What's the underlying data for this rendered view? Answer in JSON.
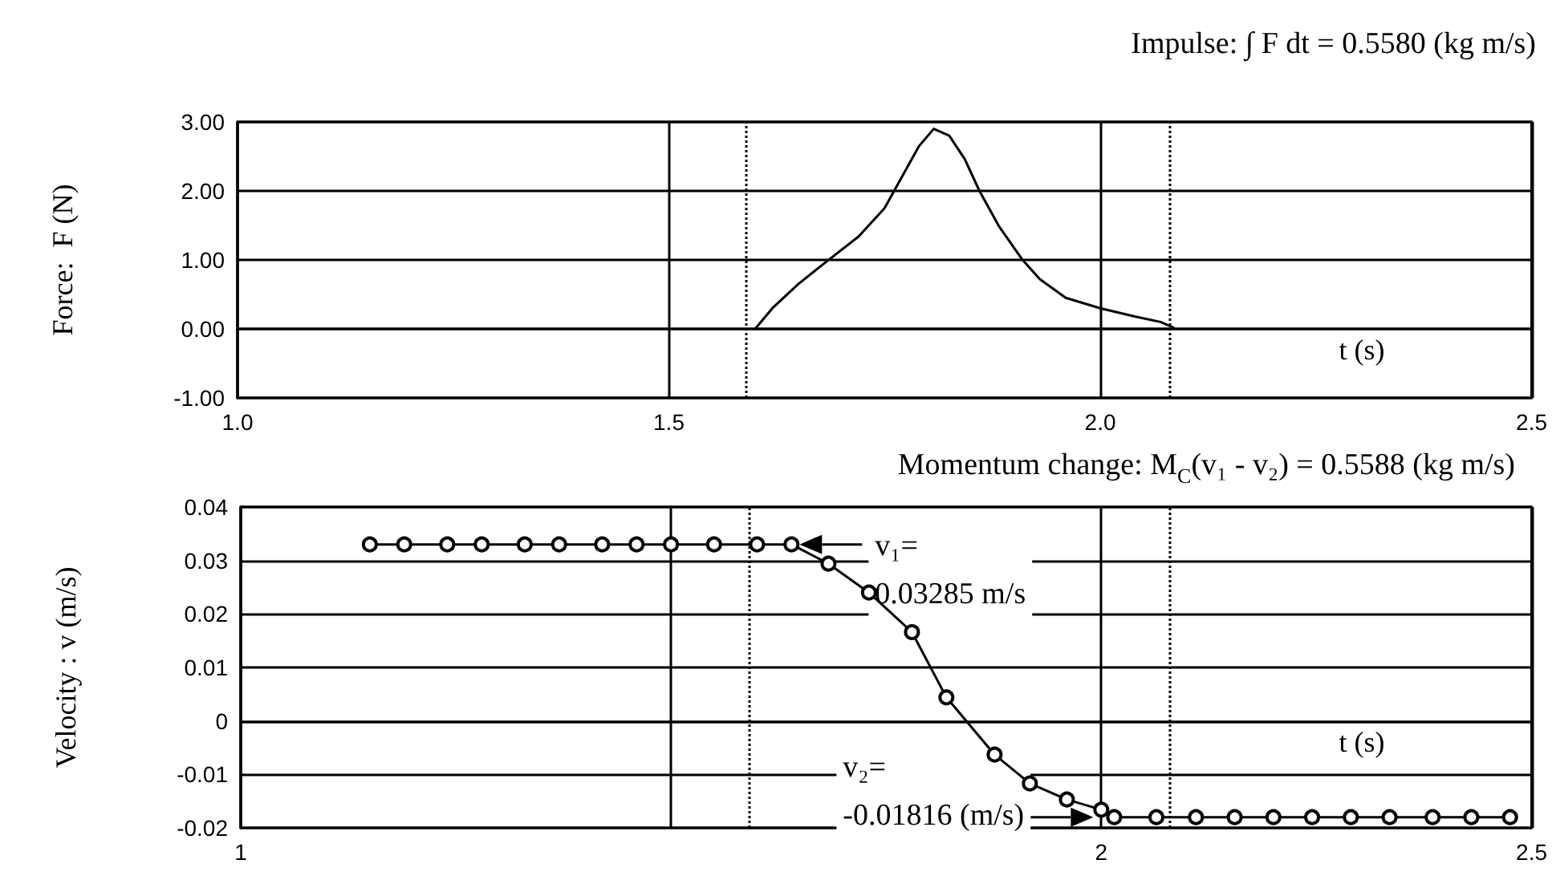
{
  "chart_data": [
    {
      "type": "line",
      "ylabel": "Force:  F (N)",
      "xlabel": "t (s)",
      "x": [
        1.6,
        1.62,
        1.65,
        1.68,
        1.72,
        1.75,
        1.77,
        1.79,
        1.807,
        1.825,
        1.843,
        1.86,
        1.883,
        1.91,
        1.93,
        1.96,
        2.0,
        2.04,
        2.07,
        2.085
      ],
      "series": [
        {
          "color": "#000000",
          "values": [
            0,
            0.3,
            0.65,
            0.95,
            1.34,
            1.75,
            2.2,
            2.65,
            2.9,
            2.8,
            2.46,
            2.0,
            1.48,
            1.0,
            0.72,
            0.45,
            0.3,
            0.18,
            0.1,
            0.02
          ]
        }
      ],
      "xlim": [
        1.0,
        2.5
      ],
      "xticks": [
        {
          "value": 1.0,
          "label": "1.0"
        },
        {
          "value": 1.5,
          "label": "1.5"
        },
        {
          "value": 2.0,
          "label": "2.0"
        },
        {
          "value": 2.5,
          "label": "2.5"
        }
      ],
      "ylim": [
        -1,
        3
      ],
      "yticks": [
        {
          "value": -1,
          "label": "-1.00"
        },
        {
          "value": 0,
          "label": "0.00"
        },
        {
          "value": 1,
          "label": "1.00"
        },
        {
          "value": 2,
          "label": "2.00"
        },
        {
          "value": 3,
          "label": "3.00"
        }
      ],
      "grid": true,
      "marker": "none",
      "line_style": "solid",
      "ref_lines": [
        {
          "axis": "x",
          "value": 1.59,
          "color": "#000000",
          "line_style": "dotted"
        },
        {
          "axis": "x",
          "value": 2.08,
          "color": "#000000",
          "line_style": "dotted"
        }
      ],
      "annotations": [
        "Impulse: ∫ F dt = 0.5580 (kg m/s)"
      ]
    },
    {
      "type": "line",
      "title": "Momentum change: M$_{C}$(v₁ - v₂) = 0.5588 (kg m/s)",
      "ylabel": "Velocity : v (m/s)",
      "xlabel": "t (s)",
      "x": [
        1.15,
        1.19,
        1.24,
        1.28,
        1.33,
        1.37,
        1.42,
        1.46,
        1.5,
        1.55,
        1.6,
        1.64,
        1.683,
        1.73,
        1.78,
        1.82,
        1.876,
        1.917,
        1.96,
        2.0,
        2.015,
        2.064,
        2.11,
        2.155,
        2.2,
        2.245,
        2.29,
        2.335,
        2.385,
        2.43,
        2.475
      ],
      "series": [
        {
          "color": "#000000",
          "values": [
            0.033,
            0.033,
            0.033,
            0.033,
            0.033,
            0.033,
            0.033,
            0.033,
            0.033,
            0.033,
            0.033,
            0.033,
            0.0294,
            0.024,
            0.0166,
            0.0044,
            -0.0063,
            -0.0117,
            -0.0147,
            -0.0166,
            -0.018,
            -0.018,
            -0.018,
            -0.018,
            -0.018,
            -0.018,
            -0.018,
            -0.018,
            -0.018,
            -0.018,
            -0.018
          ]
        }
      ],
      "xlim": [
        1.0,
        2.5
      ],
      "xticks": [
        {
          "value": 1.0,
          "label": "1"
        },
        {
          "value": 1.5,
          "label": null
        },
        {
          "value": 2.0,
          "label": "2"
        },
        {
          "value": 2.5,
          "label": "2.5"
        }
      ],
      "ylim": [
        -0.02,
        0.04
      ],
      "yticks": [
        {
          "value": -0.02,
          "label": "-0.02"
        },
        {
          "value": -0.01,
          "label": "-0.01"
        },
        {
          "value": 0,
          "label": "0"
        },
        {
          "value": 0.01,
          "label": "0.01"
        },
        {
          "value": 0.02,
          "label": "0.02"
        },
        {
          "value": 0.03,
          "label": "0.03"
        },
        {
          "value": 0.04,
          "label": "0.04"
        }
      ],
      "grid": true,
      "marker": "circle",
      "line_style": "solid",
      "ref_lines": [
        {
          "axis": "x",
          "value": 1.59,
          "color": "#000000",
          "line_style": "dotted"
        },
        {
          "axis": "x",
          "value": 2.08,
          "color": "#000000",
          "line_style": "dotted"
        }
      ],
      "annotations": [
        {
          "text": "v₁=\n0.03285 m/s",
          "x": 1.64,
          "y": 0.033
        },
        {
          "text": "v₂=\n-0.01816 (m/s)",
          "x": 2.0,
          "y": -0.018
        }
      ]
    }
  ]
}
